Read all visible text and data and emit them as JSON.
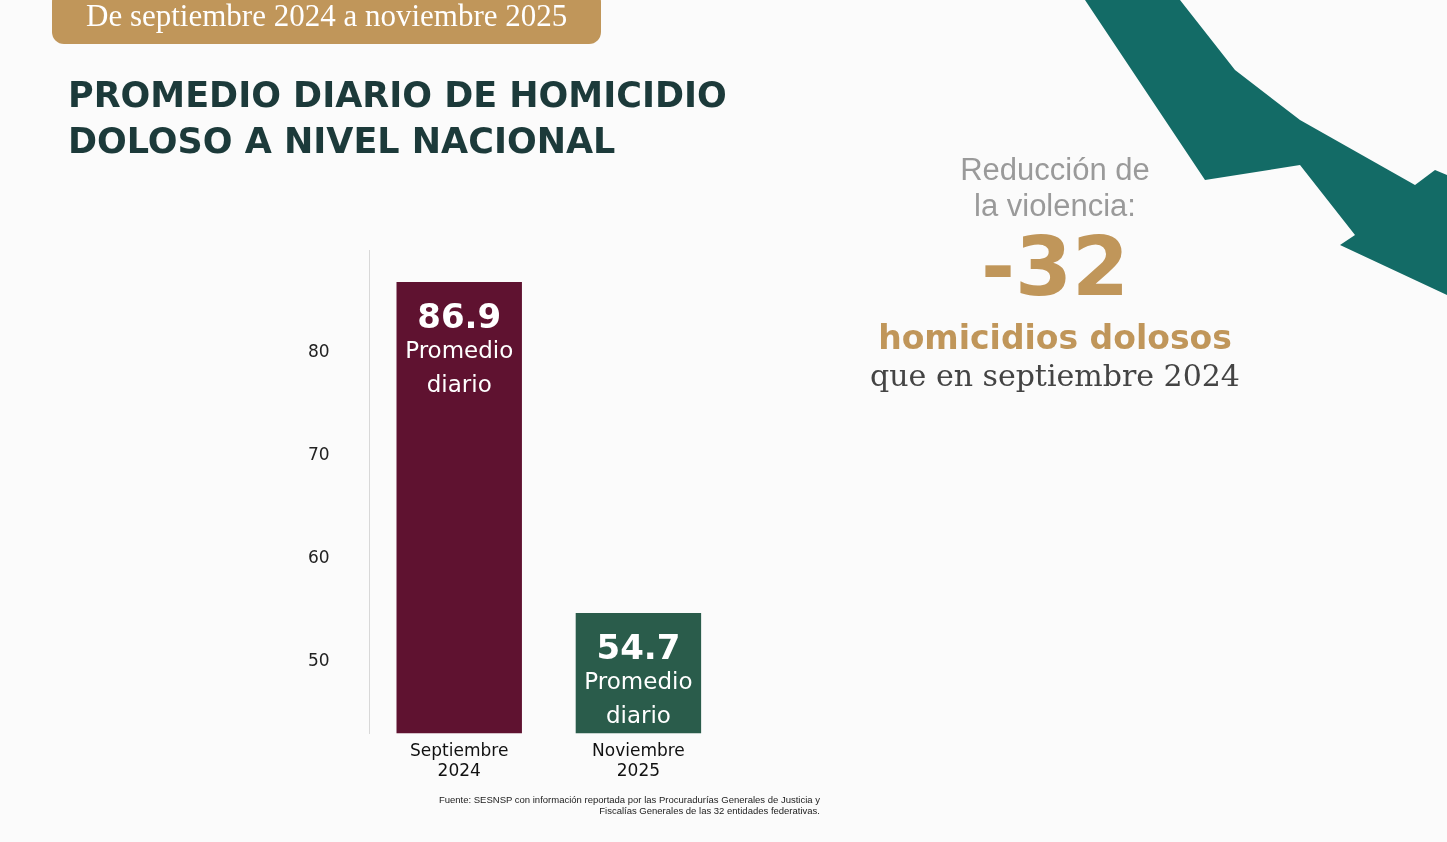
{
  "chart_data": {
    "type": "bar",
    "title": "PROMEDIO DIARIO DE HOMICIDIO DOLOSO A NIVEL NACIONAL",
    "subtitle": "De septiembre 2024 a noviembre 2025",
    "categories": [
      "Septiembre 2024",
      "Noviembre 2025"
    ],
    "values": [
      86.9,
      54.7
    ],
    "colors": [
      "#5f1230",
      "#2a5c4b"
    ],
    "ylim": [
      43,
      90
    ],
    "yticks": [
      50,
      60,
      70,
      80
    ],
    "grid": false,
    "legend": false,
    "data_labels": true,
    "annotations": [
      {
        "text": "Promedio diario",
        "x": "Septiembre 2024",
        "y": 86.9
      },
      {
        "text": "Promedio diario",
        "x": "Noviembre 2025",
        "y": 54.7
      },
      "Reducción de la violencia:",
      "-32",
      "homicidios dolosos",
      "que en septiembre 2024",
      "Fuente: SESNSP con información reportada por las Procuradurías Generales de Justicia y Fiscalías Generales de las 32 entidades federativas."
    ]
  }
}
